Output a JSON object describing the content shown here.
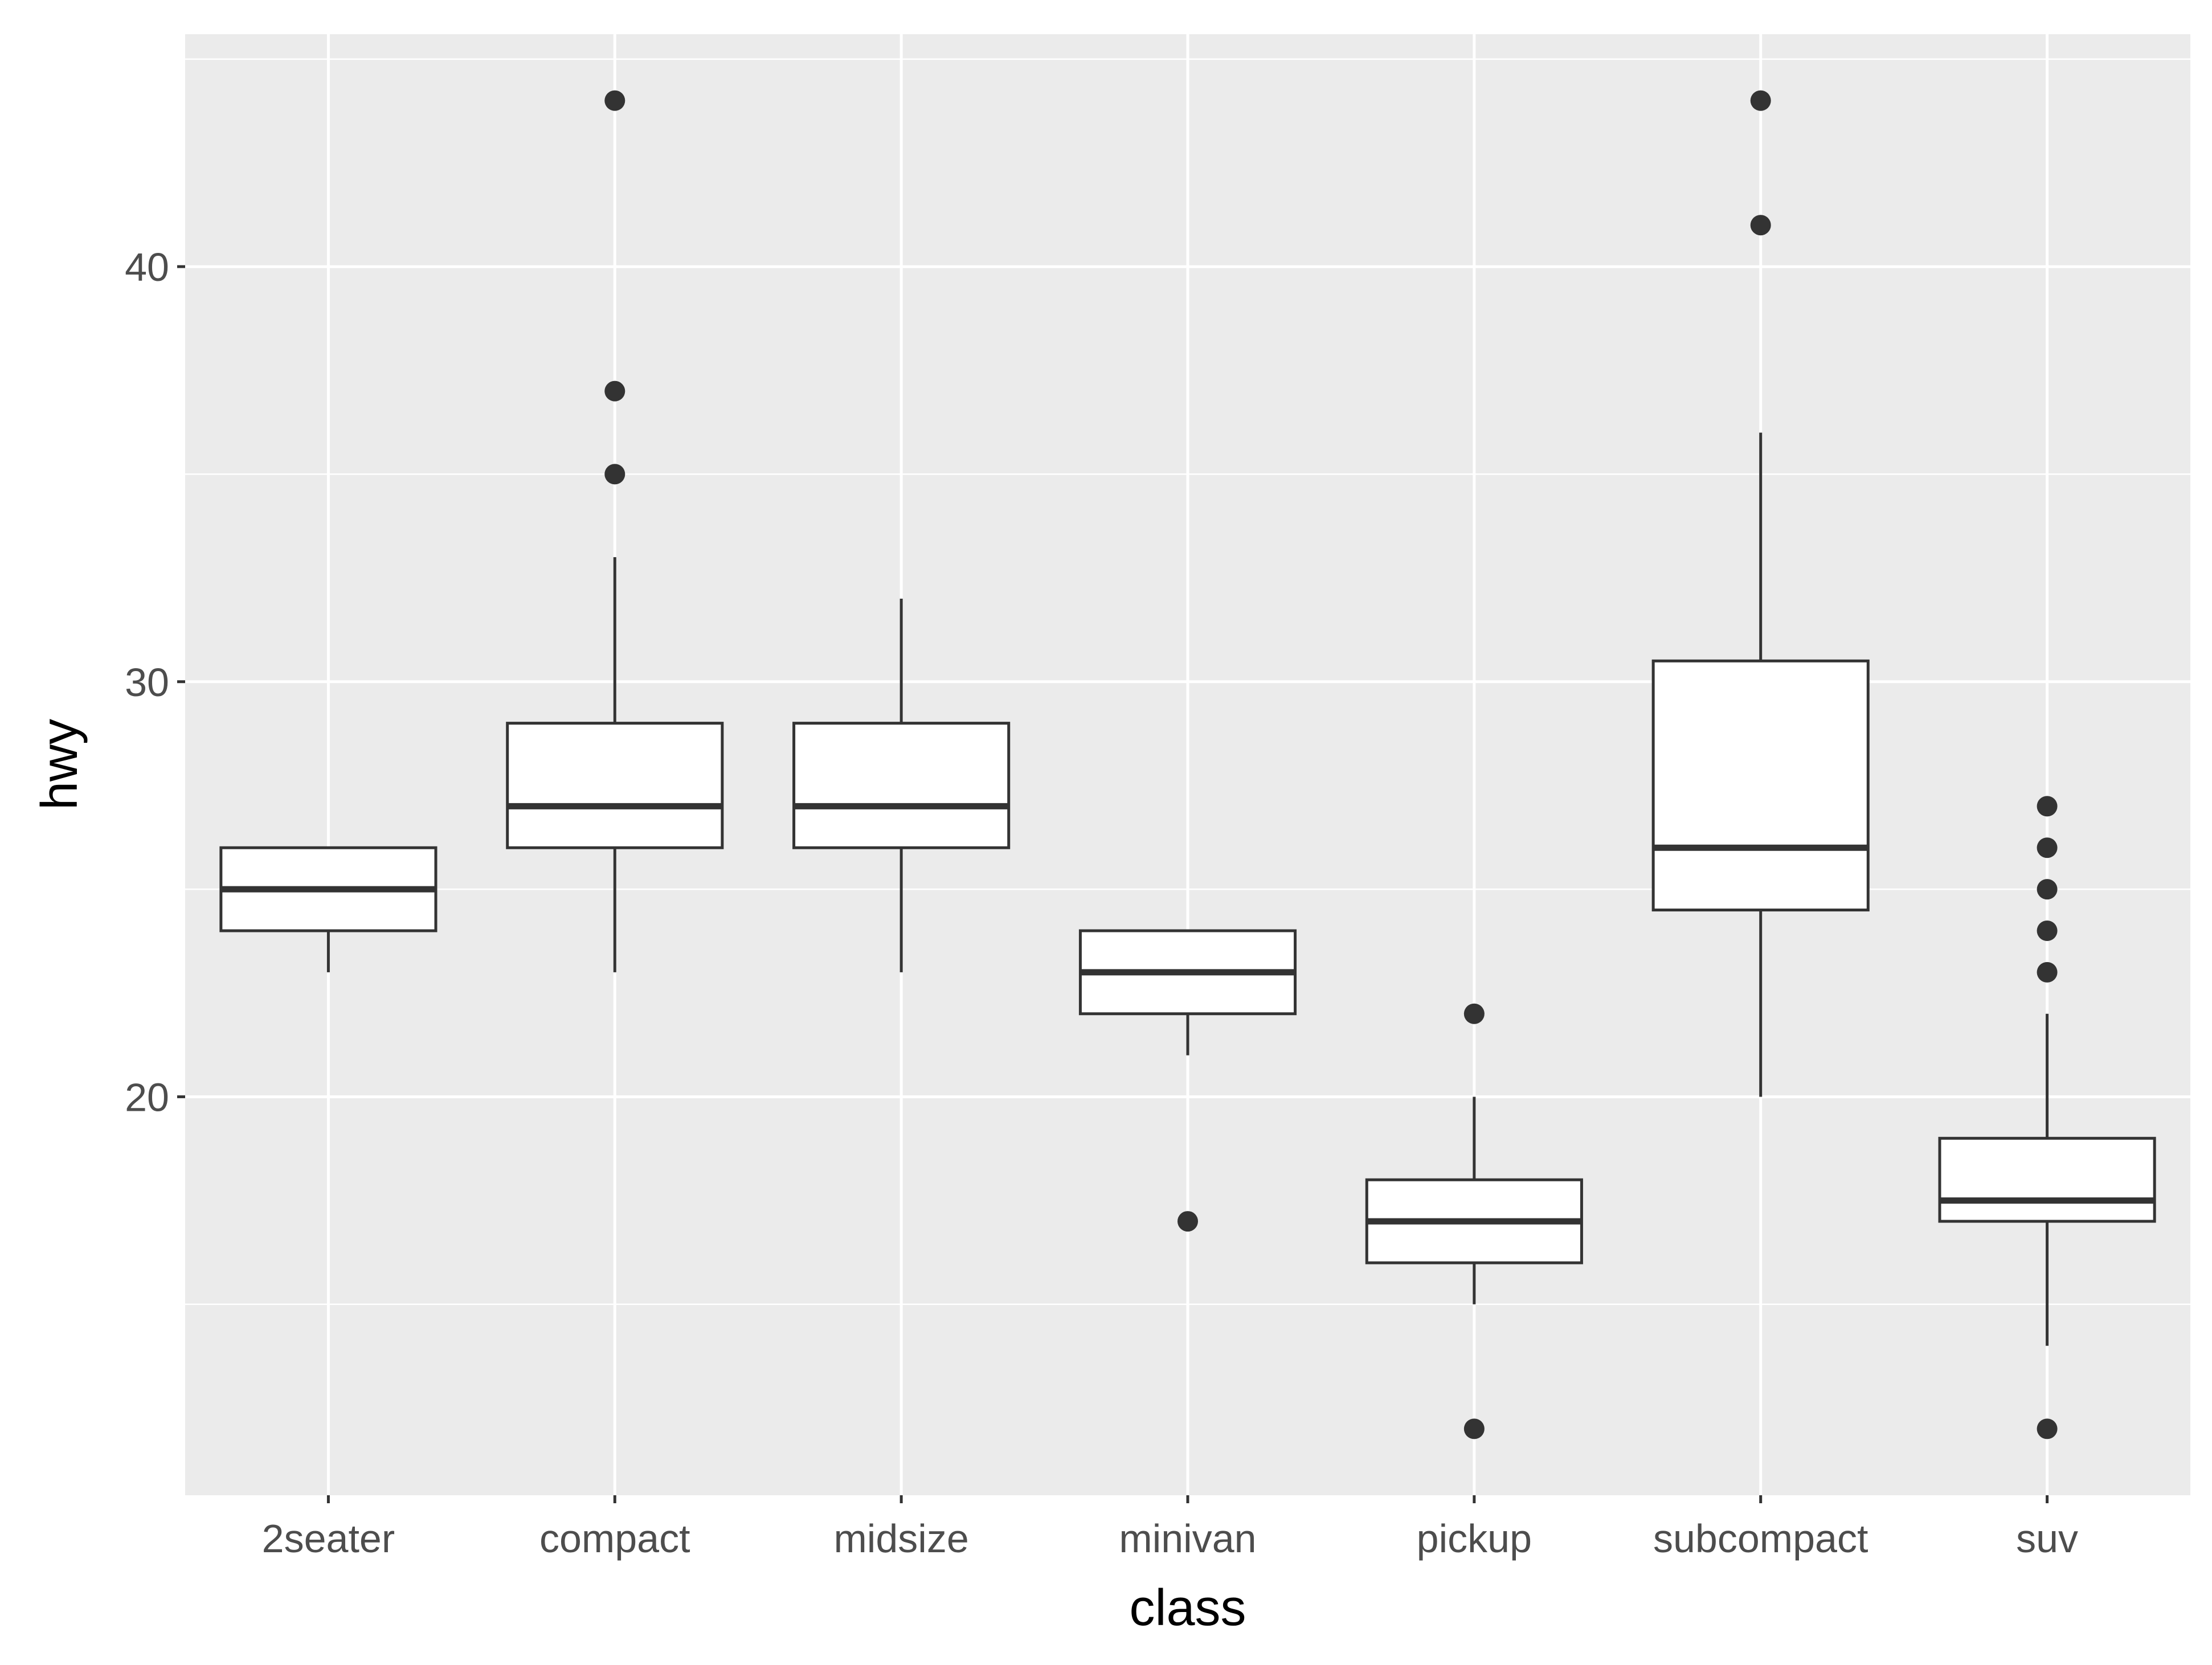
{
  "chart_data": {
    "type": "boxplot",
    "xlabel": "class",
    "ylabel": "hwy",
    "ylim": [
      10.4,
      45.6
    ],
    "yticks": [
      20,
      30,
      40
    ],
    "grid": true,
    "categories": [
      "2seater",
      "compact",
      "midsize",
      "minivan",
      "pickup",
      "subcompact",
      "suv"
    ],
    "boxes": [
      {
        "category": "2seater",
        "whisker_low": 23,
        "q1": 24,
        "median": 25,
        "q3": 26,
        "whisker_high": 26,
        "outliers": []
      },
      {
        "category": "compact",
        "whisker_low": 23,
        "q1": 26,
        "median": 27,
        "q3": 29,
        "whisker_high": 33,
        "outliers": [
          35,
          37,
          44
        ]
      },
      {
        "category": "midsize",
        "whisker_low": 23,
        "q1": 26,
        "median": 27,
        "q3": 29,
        "whisker_high": 32,
        "outliers": []
      },
      {
        "category": "minivan",
        "whisker_low": 21,
        "q1": 22,
        "median": 23,
        "q3": 24,
        "whisker_high": 24,
        "outliers": [
          17
        ]
      },
      {
        "category": "pickup",
        "whisker_low": 15,
        "q1": 16,
        "median": 17,
        "q3": 18,
        "whisker_high": 20,
        "outliers": [
          12,
          22
        ]
      },
      {
        "category": "subcompact",
        "whisker_low": 20,
        "q1": 24.5,
        "median": 26,
        "q3": 30.5,
        "whisker_high": 36,
        "outliers": [
          41,
          44
        ]
      },
      {
        "category": "suv",
        "whisker_low": 14,
        "q1": 17,
        "median": 17.5,
        "q3": 19,
        "whisker_high": 22,
        "outliers": [
          12,
          23,
          24,
          25,
          26,
          27
        ]
      }
    ],
    "colors": {
      "panel_bg": "#ebebeb",
      "grid": "#ffffff",
      "box_fill": "#ffffff",
      "stroke": "#333333",
      "tick_text": "#4d4d4d",
      "title_text": "#000000"
    }
  }
}
